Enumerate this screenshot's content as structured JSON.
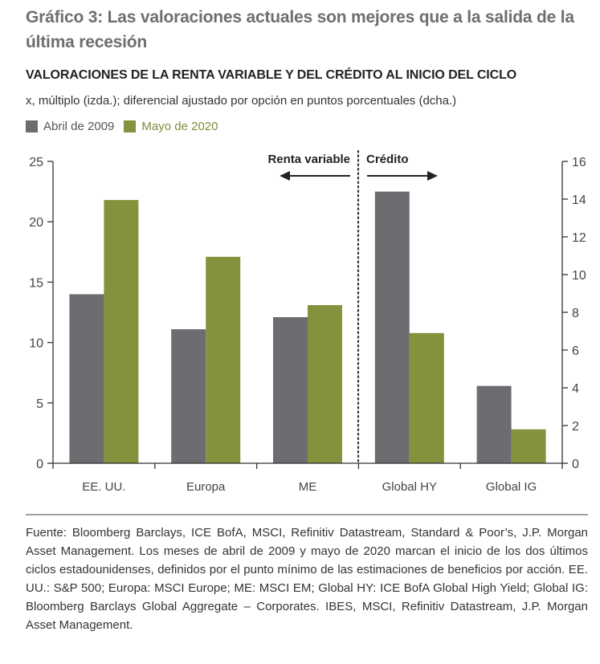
{
  "header": {
    "title": "Gráfico 3: Las valoraciones actuales son mejores que a la salida de la última recesión",
    "subtitle": "VALORACIONES DE LA RENTA VARIABLE Y DEL CRÉDITO AL INICIO DEL CICLO",
    "units": "x, múltiplo (izda.); diferencial ajustado por opción en puntos porcentuales (dcha.)"
  },
  "colors": {
    "series_2009": "#6b6d70",
    "series_2020": "#84913d",
    "legend_2020_text": "#7f8c3a",
    "title": "#6d6e71"
  },
  "chart_data": {
    "type": "bar",
    "title": "VALORACIONES DE LA RENTA VARIABLE Y DEL CRÉDITO AL INICIO DEL CICLO",
    "categories": [
      "EE. UU.",
      "Europa",
      "ME",
      "Global HY",
      "Global IG"
    ],
    "category_axis": [
      "left",
      "left",
      "left",
      "right",
      "right"
    ],
    "series": [
      {
        "name": "Abril de 2009",
        "values": [
          14.0,
          11.1,
          12.1,
          14.4,
          4.1
        ]
      },
      {
        "name": "Mayo de 2020",
        "values": [
          21.8,
          17.1,
          13.1,
          6.9,
          1.8
        ]
      }
    ],
    "ylabel_left": "x, múltiplo",
    "ylabel_right": "diferencial ajustado por opción en puntos porcentuales",
    "ylim_left": [
      0,
      25
    ],
    "yticks_left": [
      "0",
      "5",
      "10",
      "15",
      "20",
      "25"
    ],
    "ylim_right": [
      0,
      16
    ],
    "yticks_right": [
      "0",
      "2",
      "4",
      "6",
      "8",
      "10",
      "12",
      "14",
      "16"
    ],
    "grid": false,
    "legend_position": "top-left",
    "annotations": {
      "left_section": "Renta variable",
      "right_section": "Crédito"
    }
  },
  "footer": {
    "source": "Fuente: Bloomberg Barclays, ICE BofA, MSCI, Refinitiv Datastream, Standard & Poor’s, J.P. Morgan Asset Management. Los meses de abril de 2009 y mayo de 2020 marcan el inicio de los dos últimos ciclos estadounidenses, definidos por el punto mínimo de las estimaciones de beneficios por acción. EE. UU.: S&P 500; Europa: MSCI Europe; ME: MSCI EM; Global HY: ICE BofA Global High Yield; Global IG: Bloomberg Barclays Global Aggregate – Corporates. IBES, MSCI, Refinitiv Datastream, J.P. Morgan Asset Management."
  }
}
